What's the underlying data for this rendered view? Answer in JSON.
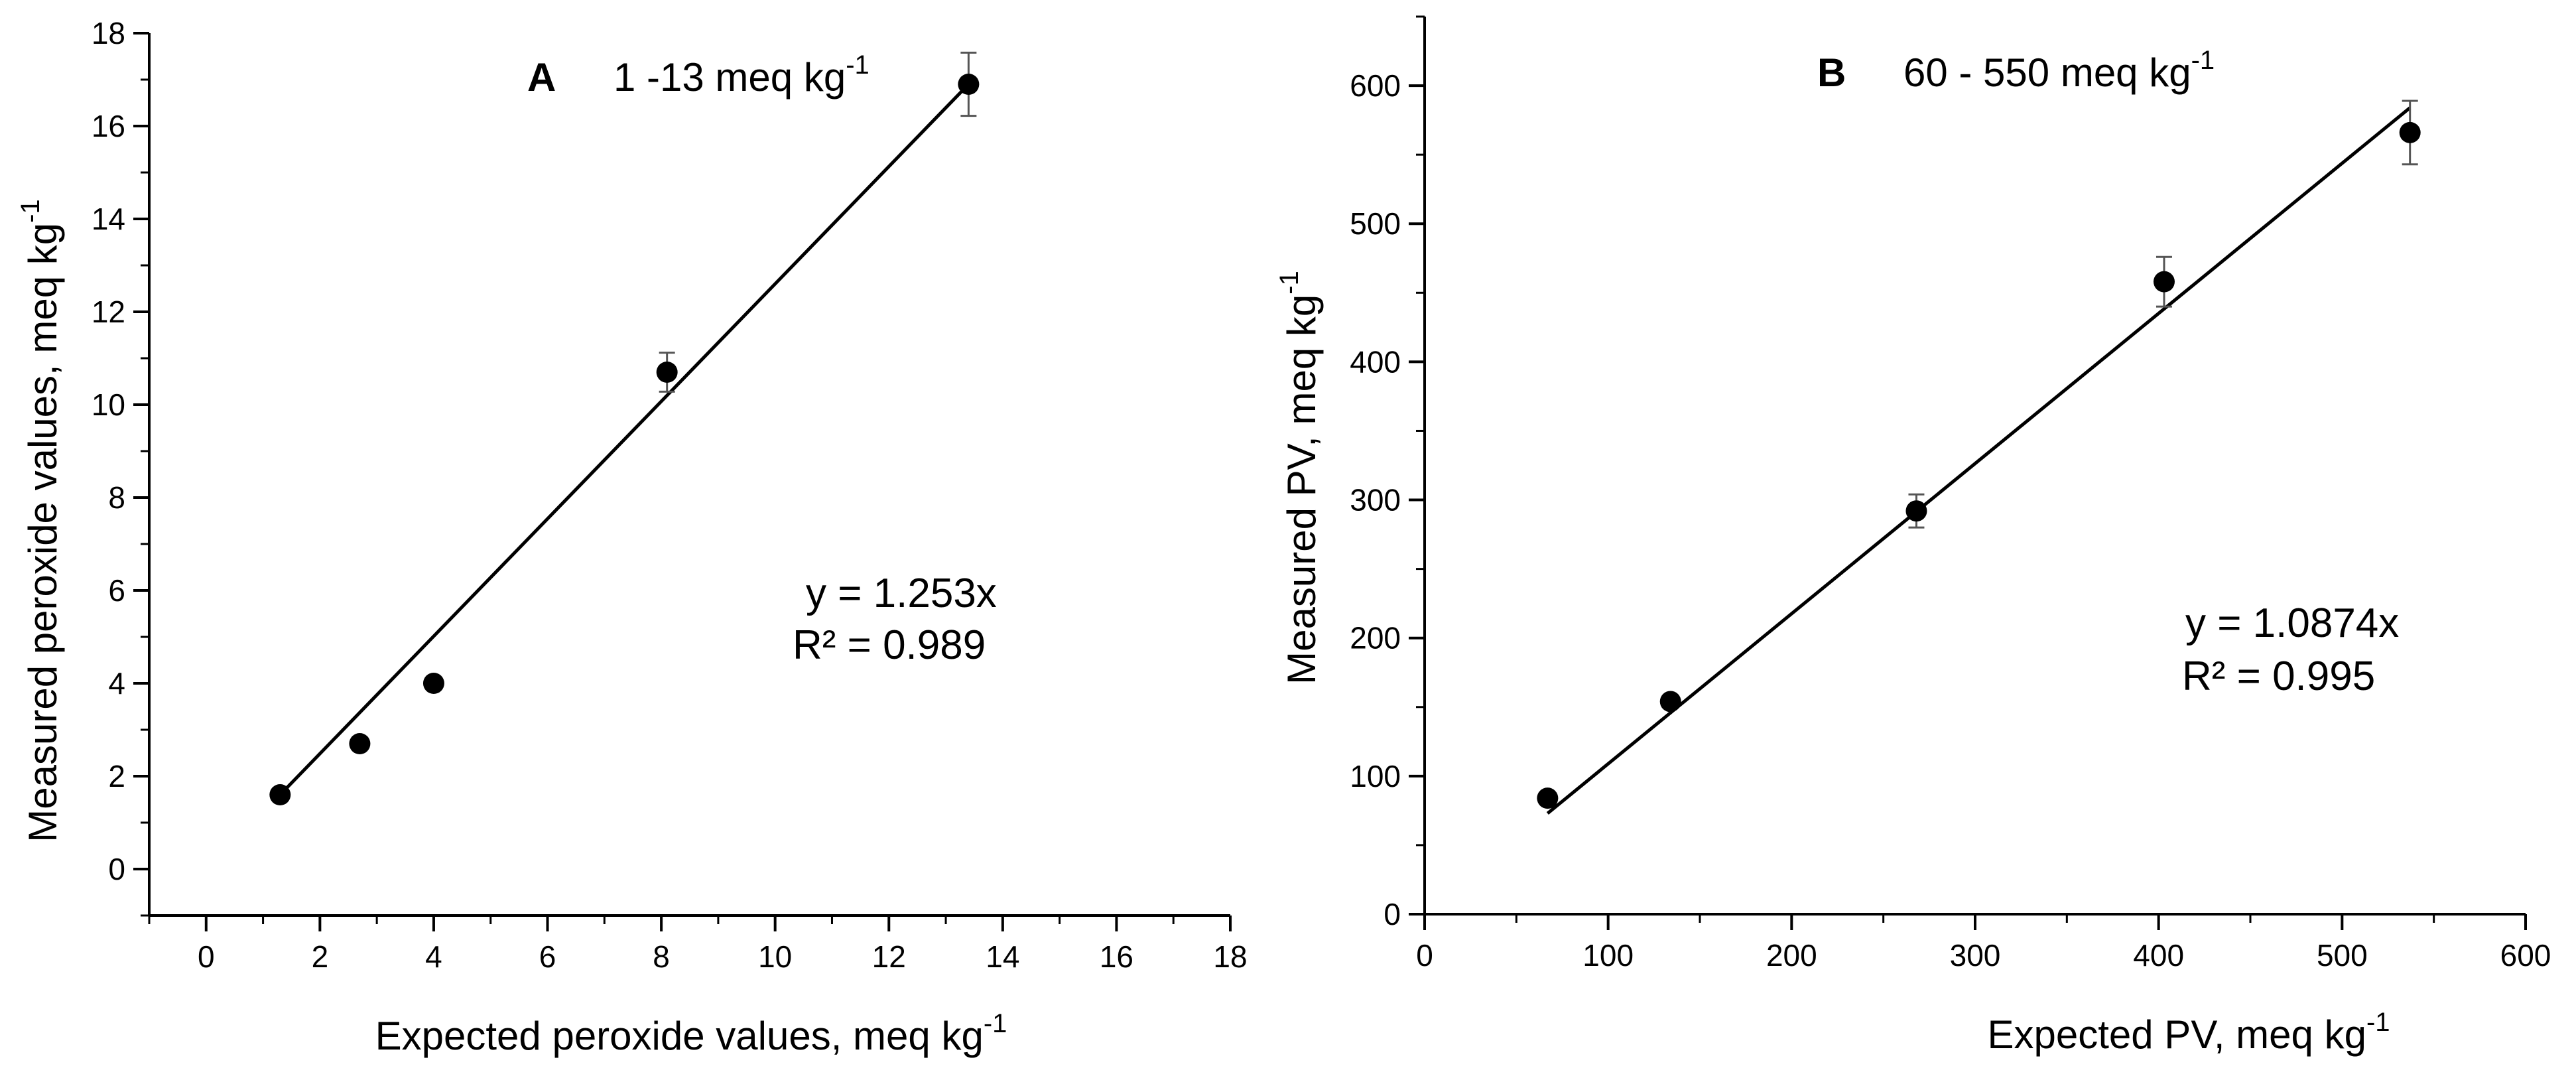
{
  "colors": {
    "ink": "#000000",
    "background": "#ffffff",
    "errorbar": "#555555"
  },
  "chart_data": [
    {
      "type": "scatter",
      "panel": "A",
      "title": "1 -13 meq kg",
      "title_sup": "-1",
      "xlabel": "Expected peroxide values, meq kg",
      "xlabel_sup": "-1",
      "ylabel": "Measured  peroxide values, meq kg",
      "ylabel_sup": "-1",
      "xlim": [
        -1,
        18
      ],
      "ylim": [
        -1,
        18
      ],
      "xticks": [
        0,
        2,
        4,
        6,
        8,
        10,
        12,
        14,
        16,
        18
      ],
      "yticks": [
        0,
        2,
        4,
        6,
        8,
        10,
        12,
        14,
        16,
        18
      ],
      "grid": false,
      "points": [
        {
          "x": 1.3,
          "y": 1.6,
          "err": 0
        },
        {
          "x": 2.7,
          "y": 2.7,
          "err": 0
        },
        {
          "x": 4.0,
          "y": 4.0,
          "err": 0
        },
        {
          "x": 8.1,
          "y": 10.7,
          "err": 0.42
        },
        {
          "x": 13.4,
          "y": 16.9,
          "err": 0.68
        }
      ],
      "fit": {
        "x": [
          1.3,
          13.4
        ],
        "y": [
          1.6,
          16.9
        ]
      },
      "equation": "y = 1.253x",
      "r2": "R² = 0.989"
    },
    {
      "type": "scatter",
      "panel": "B",
      "title": "60 - 550 meq kg",
      "title_sup": "-1",
      "xlabel": "Expected PV, meq kg",
      "xlabel_sup": "-1",
      "ylabel": "Measured PV, meq kg",
      "ylabel_sup": "-1",
      "xlim": [
        0,
        600
      ],
      "ylim": [
        0,
        650
      ],
      "xticks": [
        0,
        100,
        200,
        300,
        400,
        500,
        600
      ],
      "yticks": [
        0,
        100,
        200,
        300,
        400,
        500,
        600
      ],
      "grid": false,
      "points": [
        {
          "x": 67,
          "y": 84,
          "err": 0
        },
        {
          "x": 134,
          "y": 154,
          "err": 0
        },
        {
          "x": 268,
          "y": 292,
          "err": 12
        },
        {
          "x": 403,
          "y": 458,
          "err": 18
        },
        {
          "x": 537,
          "y": 566,
          "err": 23
        }
      ],
      "fit": {
        "x": [
          67,
          537
        ],
        "y": [
          73,
          584
        ]
      },
      "equation": "y = 1.0874x",
      "r2": "R² = 0.995"
    }
  ]
}
